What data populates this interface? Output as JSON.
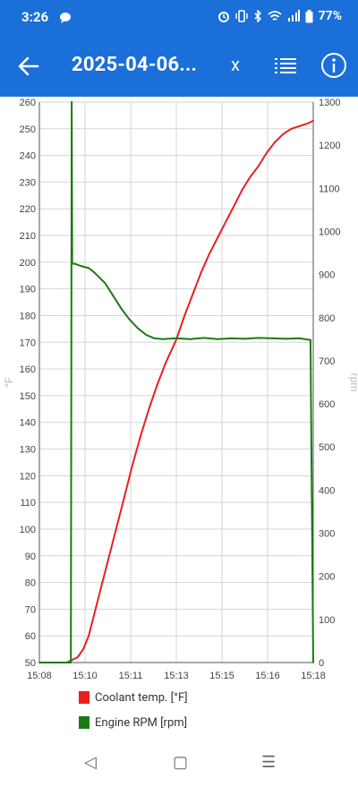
{
  "status_bar": {
    "time": "3:26",
    "battery": "77%",
    "icons": [
      "chat-bubble-icon",
      "alarm-icon",
      "vibrate-icon",
      "bluetooth-icon",
      "wifi-icon",
      "signal-icon",
      "battery-icon"
    ]
  },
  "toolbar": {
    "title": "2025-04-06...",
    "close_label": "x",
    "back_icon": "arrow-left-icon",
    "list_icon": "list-icon",
    "info_icon": "info-icon",
    "accent_color": "#1b6fd8"
  },
  "chart_data": {
    "type": "line",
    "x_ticks": [
      "15:08",
      "15:10",
      "15:11",
      "15:13",
      "15:15",
      "15:16",
      "15:18"
    ],
    "y_left": {
      "label": "°F",
      "min": 50,
      "max": 260,
      "ticks": [
        50,
        60,
        70,
        80,
        90,
        100,
        110,
        120,
        130,
        140,
        150,
        160,
        170,
        180,
        190,
        200,
        210,
        220,
        230,
        240,
        250,
        260
      ]
    },
    "y_right": {
      "label": "rpm",
      "min": 0,
      "max": 1300,
      "ticks": [
        0,
        100,
        200,
        300,
        400,
        500,
        600,
        700,
        800,
        900,
        1000,
        1100,
        1200,
        1300
      ]
    },
    "grid": true,
    "legend_position": "bottom",
    "series": [
      {
        "name": "Coolant temp. [°F]",
        "axis": "left",
        "color": "#e82020",
        "x_minutes": [
          0.0,
          1.0,
          1.2,
          1.4,
          1.6,
          1.8,
          2.0,
          2.2,
          2.5,
          2.8,
          3.1,
          3.4,
          3.7,
          4.0,
          4.3,
          4.6,
          5.0,
          5.3,
          5.6,
          5.9,
          6.2,
          6.5,
          6.8,
          7.1,
          7.4,
          7.7,
          8.0,
          8.3,
          8.6,
          8.9,
          9.2,
          9.5,
          9.8,
          10.0
        ],
        "values": [
          50,
          50,
          51,
          52,
          55,
          60,
          68,
          76,
          88,
          100,
          112,
          124,
          135,
          145,
          154,
          162,
          171,
          180,
          188,
          196,
          203,
          209,
          215,
          221,
          227,
          232,
          236,
          241,
          245,
          248,
          250,
          251,
          252,
          253
        ]
      },
      {
        "name": "Engine RPM [rpm]",
        "axis": "right",
        "color": "#1c7a12",
        "x_minutes": [
          0.0,
          1.15,
          1.18,
          1.2,
          1.3,
          1.5,
          1.8,
          2.0,
          2.4,
          2.7,
          3.0,
          3.3,
          3.6,
          3.9,
          4.2,
          4.5,
          5.0,
          5.5,
          6.0,
          6.5,
          7.0,
          7.5,
          8.0,
          8.5,
          9.0,
          9.5,
          9.9,
          10.0
        ],
        "values": [
          0,
          0,
          1300,
          925,
          925,
          920,
          915,
          905,
          880,
          850,
          820,
          795,
          775,
          760,
          752,
          750,
          752,
          750,
          753,
          750,
          752,
          751,
          753,
          752,
          751,
          752,
          748,
          0
        ]
      }
    ]
  },
  "legend": {
    "items": [
      {
        "label": "Coolant temp. [°F]",
        "color": "#e82020"
      },
      {
        "label": "Engine RPM [rpm]",
        "color": "#1c7a12"
      }
    ]
  },
  "nav_bar": {
    "back_glyph": "◁",
    "home_glyph": "▢",
    "recents_glyph": "☰"
  }
}
